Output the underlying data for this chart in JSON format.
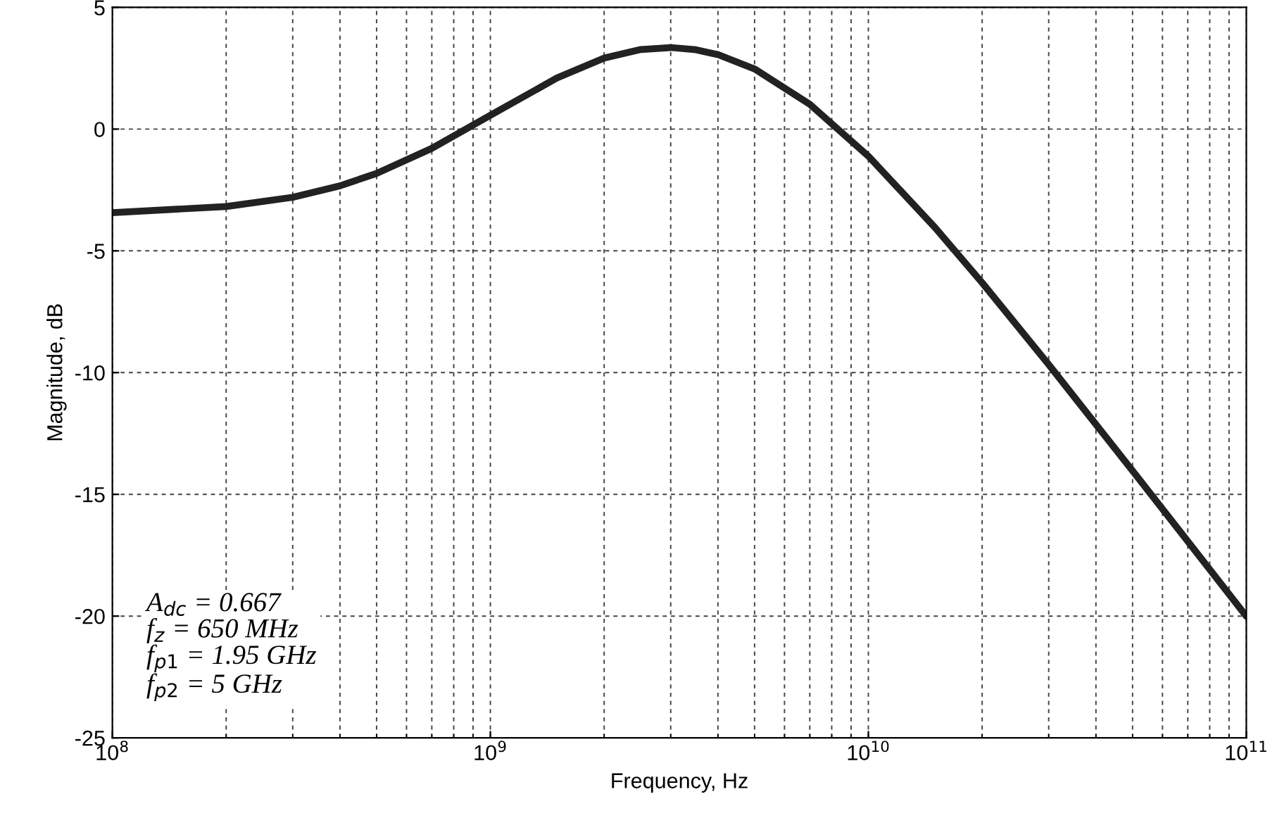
{
  "chart_data": {
    "type": "line",
    "xlabel": "Frequency, Hz",
    "ylabel": "Magnitude, dB",
    "log": "x",
    "x": [
      100000000.0,
      200000000.0,
      300000000.0,
      400000000.0,
      500000000.0,
      700000000.0,
      1000000000.0,
      1500000000.0,
      2000000000.0,
      2500000000.0,
      3000000000.0,
      3500000000.0,
      4000000000.0,
      5000000000.0,
      7000000000.0,
      10000000000.0,
      15000000000.0,
      20000000000.0,
      30000000000.0,
      50000000000.0,
      70000000000.0,
      100000000000.0
    ],
    "series": [
      {
        "color": "#222222",
        "values": [
          -3.43,
          -3.18,
          -2.8,
          -2.33,
          -1.82,
          -0.79,
          0.57,
          2.1,
          2.92,
          3.27,
          3.35,
          3.26,
          3.06,
          2.47,
          1.02,
          -1.11,
          -4.04,
          -6.31,
          -9.67,
          -14.03,
          -16.93,
          -20.01
        ]
      }
    ],
    "xlim": [
      100000000.0,
      100000000000.0
    ],
    "ylim": [
      -25,
      5
    ],
    "xticks": [
      {
        "value": 100000000.0,
        "label": "10$^{8}$"
      },
      {
        "value": 1000000000.0,
        "label": "10$^{9}$"
      },
      {
        "value": 10000000000.0,
        "label": "10$^{10}$"
      },
      {
        "value": 100000000000.0,
        "label": "10$^{11}$"
      }
    ],
    "yticks": [
      -25,
      -20,
      -15,
      -10,
      -5,
      0,
      5
    ],
    "grid": true,
    "line_style": "solid",
    "marker": "none",
    "annotations": [
      "A$_{dc}$ = 0.667\nf$_{z}$ = 650 MHz\nf$_{p1}$ = 1.95 GHz\nf$_{p2}$ = 5 GHz"
    ]
  }
}
